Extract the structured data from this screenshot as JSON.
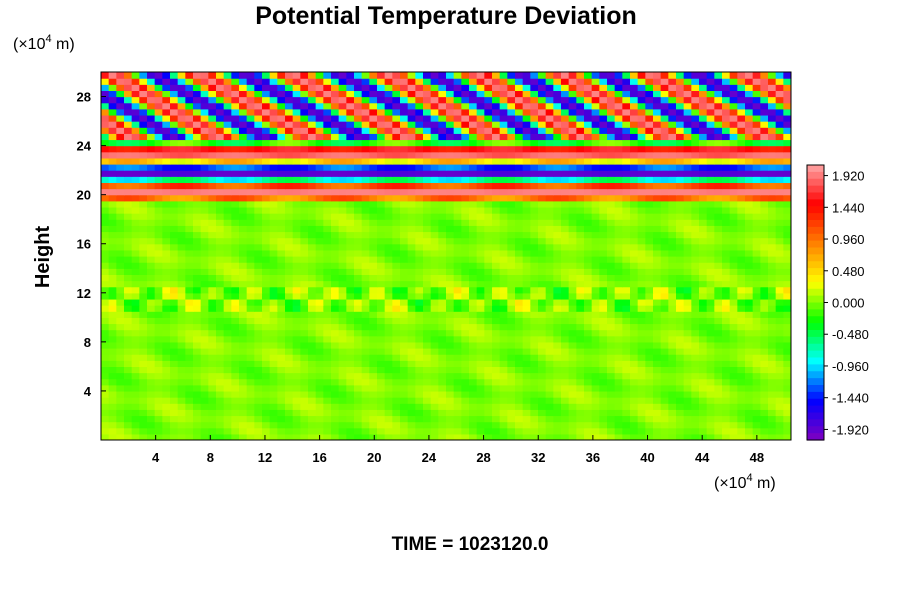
{
  "chart_data": {
    "type": "heatmap",
    "title": "Potential Temperature Deviation",
    "ylabel": "Height",
    "y_unit_prefix": "(×10",
    "y_unit_exp": "4",
    "y_unit_suffix": " m)",
    "x_unit_prefix": "(×10",
    "x_unit_exp": "4",
    "x_unit_suffix": " m)",
    "xlim": [
      0,
      50.5
    ],
    "ylim": [
      0,
      30
    ],
    "x_ticks": [
      4,
      8,
      12,
      16,
      20,
      24,
      28,
      32,
      36,
      40,
      44,
      48
    ],
    "x_tick_labels": [
      "4",
      "8",
      "12",
      "16",
      "20",
      "24",
      "28",
      "32",
      "36",
      "40",
      "44",
      "48"
    ],
    "y_ticks": [
      4,
      8,
      12,
      16,
      20,
      24,
      28
    ],
    "y_tick_labels": [
      "4",
      "8",
      "12",
      "16",
      "20",
      "24",
      "28"
    ],
    "colorbar": {
      "range": [
        -2.08,
        2.08
      ],
      "ticks": [
        1.92,
        1.44,
        0.96,
        0.48,
        0.0,
        -0.48,
        -0.96,
        -1.44,
        -1.92
      ],
      "tick_labels": [
        "1.920",
        "1.440",
        "0.960",
        "0.480",
        "0.000",
        "-0.480",
        "-0.960",
        "-1.440",
        "-1.920"
      ],
      "colormap": "rainbow",
      "colors": [
        "#ffa8a8",
        "#ff0000",
        "#ff8000",
        "#ffff00",
        "#00ff00",
        "#00ffff",
        "#0000ff",
        "#8000c0"
      ]
    },
    "field_description_regions": {
      "lower": {
        "y_range": [
          0,
          19.5
        ],
        "typical_value": 0.0
      },
      "banded_layer": {
        "y_range": [
          19.5,
          24.5
        ],
        "alternating_values": [
          1.95,
          -1.95
        ]
      },
      "upper_tilted_bands": {
        "y_range": [
          24.5,
          30
        ],
        "amplitude": 1.95
      }
    }
  },
  "footer": {
    "time_label": "TIME = 1023120.0"
  }
}
